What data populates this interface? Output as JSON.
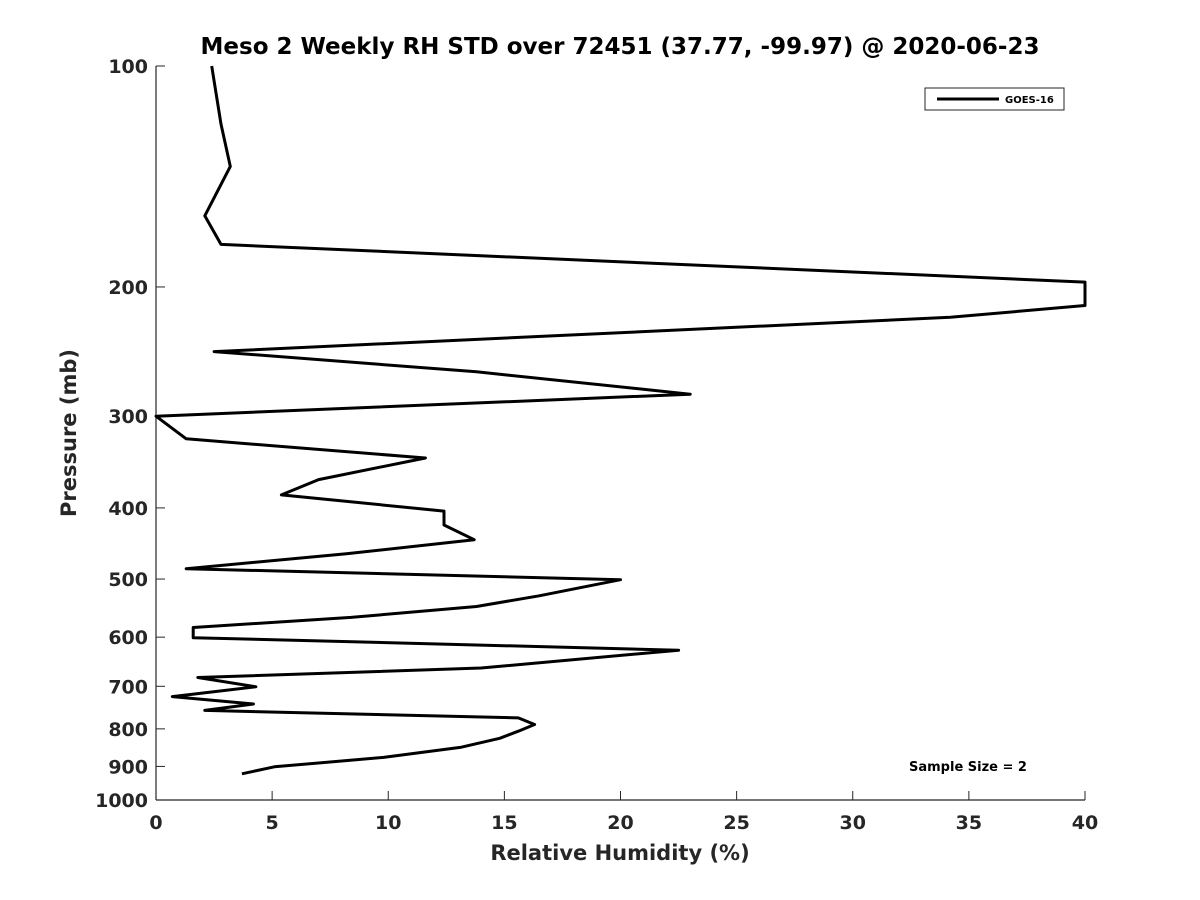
{
  "chart_data": {
    "type": "line",
    "title": "Meso 2 Weekly RH STD over 72451 (37.77, -99.97) @ 2020-06-23",
    "xlabel": "Relative Humidity (%)",
    "ylabel": "Pressure (mb)",
    "xlim": [
      0,
      40
    ],
    "ylim": [
      100,
      1000
    ],
    "yscale": "log",
    "yaxis_reversed": true,
    "grid": false,
    "x_ticks": [
      0,
      5,
      10,
      15,
      20,
      25,
      30,
      35,
      40
    ],
    "x_tick_labels": [
      "0",
      "5",
      "10",
      "15",
      "20",
      "25",
      "30",
      "35",
      "40"
    ],
    "y_ticks": [
      100,
      200,
      300,
      400,
      500,
      600,
      700,
      800,
      900,
      1000
    ],
    "y_tick_labels": [
      "100",
      "200",
      "300",
      "400",
      "500",
      "600",
      "700",
      "800",
      "900",
      "1000"
    ],
    "legend_position": "top-right",
    "series": [
      {
        "name": "GOES-16",
        "color": "#000000",
        "x": [
          2.4,
          2.8,
          3.2,
          2.1,
          2.8,
          40.0,
          40.0,
          34.2,
          2.5,
          13.8,
          23.0,
          0.0,
          1.3,
          11.6,
          7.0,
          5.4,
          12.4,
          12.4,
          13.7,
          8.2,
          1.3,
          20.0,
          16.5,
          13.8,
          8.4,
          1.6,
          1.6,
          22.5,
          14.0,
          1.8,
          4.3,
          0.7,
          4.2,
          2.1,
          15.6,
          16.3,
          15.6,
          14.8,
          13.1,
          9.8,
          5.1,
          3.7
        ],
        "y": [
          100,
          120,
          137,
          160,
          175,
          197,
          212,
          220,
          245,
          261,
          280,
          300,
          322,
          342,
          366,
          384,
          404,
          422,
          442,
          462,
          484,
          501,
          527,
          545,
          564,
          582,
          601,
          625,
          661,
          681,
          701,
          723,
          740,
          755,
          773,
          789,
          806,
          824,
          848,
          875,
          901,
          921
        ]
      }
    ],
    "annotations": [
      "Sample Size = 2"
    ]
  }
}
